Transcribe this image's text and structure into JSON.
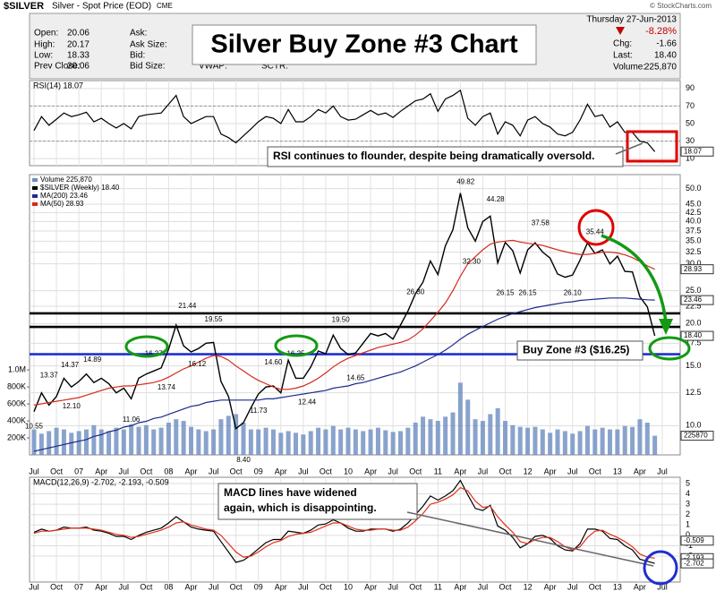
{
  "header": {
    "symbol": "$SILVER",
    "description": "Silver - Spot Price (EOD)",
    "exchange": "CME",
    "title": "Silver Buy Zone #3 Chart",
    "fields": [
      [
        "Open:",
        "20.06"
      ],
      [
        "High:",
        "20.17"
      ],
      [
        "Low:",
        "18.33"
      ],
      [
        "Prev Close:",
        "20.06"
      ]
    ],
    "fields2": [
      "Ask:",
      "Ask Size:",
      "Bid:",
      "Bid Size:"
    ],
    "vwap": "VWAP:",
    "sctr": "SCTR:",
    "date": "Thursday 27-Jun-2013",
    "change_pct": "-8.28%",
    "quote": [
      [
        "Chg:",
        "-1.66"
      ],
      [
        "Last:",
        "18.40"
      ],
      [
        "Volume:",
        "225,870"
      ]
    ],
    "credit": "© StockCharts.com"
  },
  "chart_data": [
    {
      "type": "line",
      "title": "RSI(14) 18.07",
      "grid": true,
      "series": [
        {
          "color": "#000000",
          "values": [
            42,
            58,
            48,
            55,
            62,
            58,
            60,
            63,
            52,
            56,
            50,
            45,
            50,
            44,
            58,
            60,
            61,
            62,
            72,
            82,
            58,
            50,
            54,
            58,
            58,
            38,
            34,
            28,
            36,
            44,
            52,
            58,
            56,
            50,
            66,
            52,
            52,
            58,
            66,
            62,
            70,
            58,
            54,
            55,
            60,
            65,
            60,
            62,
            57,
            64,
            70,
            76,
            78,
            84,
            64,
            78,
            82,
            88,
            56,
            48,
            58,
            62,
            38,
            52,
            48,
            36,
            54,
            58,
            50,
            46,
            38,
            36,
            40,
            54,
            72,
            58,
            60,
            46,
            52,
            40,
            40,
            30,
            28,
            18.07,
            null
          ]
        }
      ],
      "ylim": [
        2,
        99
      ],
      "yticks": [
        90,
        70,
        50,
        30,
        10
      ],
      "levels": [
        70,
        30
      ],
      "tags": [
        18.07
      ],
      "annotation": "RSI continues to flounder, despite being dramatically oversold."
    },
    {
      "type": "line",
      "log_scale": true,
      "grid": true,
      "categories": [
        "Jul",
        null,
        null,
        "Oct",
        null,
        null,
        "07",
        null,
        null,
        "Apr",
        null,
        null,
        "Jul",
        null,
        null,
        "Oct",
        null,
        null,
        "08",
        null,
        null,
        "Apr",
        null,
        null,
        "Jul",
        null,
        null,
        "Oct",
        null,
        null,
        "09",
        null,
        null,
        "Apr",
        null,
        null,
        "Jul",
        null,
        null,
        "Oct",
        null,
        null,
        "10",
        null,
        null,
        "Apr",
        null,
        null,
        "Jul",
        null,
        null,
        "Oct",
        null,
        null,
        "11",
        null,
        null,
        "Apr",
        null,
        null,
        "Jul",
        null,
        null,
        "Oct",
        null,
        null,
        "12",
        null,
        null,
        "Apr",
        null,
        null,
        "Jul",
        null,
        null,
        "Oct",
        null,
        null,
        "13",
        null,
        null,
        "Apr",
        null,
        null,
        "Jul"
      ],
      "series": [
        {
          "name": "Volume 225,870",
          "type": "bar",
          "axis": "y2",
          "color": "#6b8cc0",
          "values": [
            300000,
            250000,
            280000,
            320000,
            300000,
            260000,
            280000,
            300000,
            350000,
            300000,
            280000,
            320000,
            300000,
            360000,
            330000,
            350000,
            300000,
            320000,
            380000,
            420000,
            400000,
            330000,
            300000,
            280000,
            300000,
            420000,
            460000,
            480000,
            380000,
            300000,
            300000,
            320000,
            300000,
            260000,
            280000,
            260000,
            240000,
            280000,
            320000,
            300000,
            340000,
            300000,
            320000,
            300000,
            280000,
            300000,
            320000,
            290000,
            270000,
            280000,
            320000,
            380000,
            450000,
            420000,
            400000,
            450000,
            500000,
            850000,
            650000,
            420000,
            400000,
            480000,
            550000,
            400000,
            350000,
            330000,
            320000,
            330000,
            300000,
            260000,
            300000,
            280000,
            250000,
            280000,
            340000,
            300000,
            320000,
            300000,
            300000,
            340000,
            330000,
            420000,
            380000,
            225870,
            null
          ]
        },
        {
          "name": "$SILVER (Weekly) 18.40",
          "color": "#000000",
          "values": [
            11.0,
            12.5,
            11.5,
            12.2,
            13.8,
            13.0,
            13.5,
            14.2,
            13.4,
            13.8,
            13.3,
            12.5,
            12.9,
            12.0,
            13.8,
            14.2,
            14.5,
            14.8,
            16.8,
            19.8,
            17.2,
            16.5,
            16.9,
            17.5,
            17.6,
            13.5,
            12.2,
            9.8,
            10.2,
            11.3,
            12.4,
            13.0,
            13.1,
            12.5,
            15.6,
            13.8,
            13.8,
            14.9,
            16.6,
            16.3,
            18.5,
            16.9,
            16.2,
            16.4,
            17.5,
            18.7,
            18.4,
            18.7,
            18.0,
            19.8,
            21.8,
            24.5,
            26.5,
            30.6,
            27.9,
            33.9,
            37.8,
            48.5,
            38.3,
            35.0,
            40.0,
            41.5,
            30.2,
            34.7,
            32.8,
            28.2,
            33.0,
            34.6,
            32.5,
            31.2,
            28.0,
            27.4,
            27.8,
            30.8,
            34.6,
            32.2,
            33.0,
            30.0,
            31.6,
            28.5,
            28.4,
            24.0,
            22.4,
            18.4,
            null
          ]
        },
        {
          "name": "MA(200) 23.46",
          "color": "#1c2a8c",
          "values": [
            8.4,
            8.5,
            8.6,
            8.7,
            8.8,
            8.9,
            9.0,
            9.1,
            9.3,
            9.4,
            9.6,
            9.7,
            9.9,
            10.0,
            10.2,
            10.3,
            10.5,
            10.6,
            10.8,
            11.0,
            11.2,
            11.4,
            11.5,
            11.7,
            11.8,
            11.9,
            11.9,
            11.9,
            11.9,
            11.9,
            11.9,
            12.0,
            12.0,
            12.1,
            12.2,
            12.3,
            12.4,
            12.5,
            12.6,
            12.7,
            12.9,
            13.0,
            13.1,
            13.3,
            13.4,
            13.6,
            13.8,
            14.0,
            14.2,
            14.4,
            14.7,
            15.0,
            15.4,
            15.8,
            16.2,
            16.7,
            17.3,
            18.0,
            18.6,
            19.1,
            19.6,
            20.1,
            20.6,
            21.0,
            21.4,
            21.7,
            22.0,
            22.3,
            22.5,
            22.7,
            22.9,
            23.1,
            23.2,
            23.4,
            23.5,
            23.6,
            23.7,
            23.8,
            23.8,
            23.8,
            23.7,
            23.6,
            23.5,
            23.46,
            null
          ]
        },
        {
          "name": "MA(50) 28.93",
          "color": "#d42a1c",
          "values": [
            11.5,
            11.6,
            11.7,
            11.8,
            11.9,
            12.0,
            12.1,
            12.3,
            12.5,
            12.7,
            12.9,
            13.0,
            13.1,
            13.1,
            13.2,
            13.3,
            13.4,
            13.6,
            13.9,
            14.3,
            14.7,
            15.0,
            15.4,
            15.8,
            16.1,
            16.0,
            15.6,
            15.0,
            14.5,
            14.0,
            13.6,
            13.3,
            13.0,
            12.8,
            12.8,
            12.9,
            13.1,
            13.4,
            13.8,
            14.3,
            14.9,
            15.4,
            15.8,
            16.1,
            16.4,
            16.7,
            17.0,
            17.2,
            17.4,
            17.6,
            17.9,
            18.5,
            19.3,
            20.4,
            21.6,
            23.0,
            25.0,
            27.6,
            30.0,
            31.5,
            33.0,
            34.3,
            34.8,
            35.0,
            35.2,
            34.8,
            34.5,
            34.3,
            34.0,
            33.5,
            33.0,
            32.6,
            32.2,
            32.0,
            32.0,
            32.2,
            32.5,
            32.5,
            32.3,
            31.9,
            31.3,
            30.5,
            29.6,
            28.93,
            null
          ]
        }
      ],
      "ylim": [
        8.2,
        55
      ],
      "yticks": [
        {
          "value": 50,
          "label": "50.0"
        },
        {
          "value": 45,
          "label": "45.0"
        },
        42.5,
        {
          "value": 40,
          "label": "40.0"
        },
        37.5,
        {
          "value": 35,
          "label": "35.0"
        },
        32.5,
        {
          "value": 30,
          "label": "30.0"
        },
        {
          "value": 25,
          "label": "25.0"
        },
        22.5,
        {
          "value": 20,
          "label": "20.0"
        },
        17.5,
        {
          "value": 15,
          "label": "15.0"
        },
        12.5,
        {
          "value": 10,
          "label": "10.0"
        }
      ],
      "y2lim": [
        0,
        3300000
      ],
      "y2ticks": [
        {
          "value": 200000,
          "label": "200K"
        },
        {
          "value": 400000,
          "label": "400K"
        },
        {
          "value": 600000,
          "label": "600K"
        },
        {
          "value": 800000,
          "label": "800K"
        },
        {
          "value": 1000000,
          "label": "1.0M"
        }
      ],
      "levels": [
        {
          "value": 21.44,
          "color": "#000000"
        },
        {
          "value": 19.55,
          "color": "#000000"
        },
        {
          "value": 16.25,
          "color": "#1f2fd0"
        }
      ],
      "price_labels": [
        10.55,
        13.37,
        {
          "value": 12.1,
          "label": "12.10"
        },
        14.37,
        14.89,
        11.06,
        13.74,
        16.27,
        21.44,
        16.12,
        19.55,
        {
          "value": 8.4,
          "label": "8.40"
        },
        11.73,
        {
          "value": 14.6,
          "label": "14.60"
        },
        16.25,
        12.44,
        {
          "value": 19.5,
          "label": "19.50"
        },
        14.65,
        {
          "value": 26.3,
          "label": "26.30"
        },
        49.82,
        {
          "value": 32.3,
          "label": "32.30"
        },
        44.28,
        26.15,
        37.58,
        26.15,
        {
          "value": 26.1,
          "label": "26.10"
        },
        35.44
      ],
      "tags": [
        {
          "value": 18.4,
          "label": "18.40"
        },
        23.46,
        28.93,
        {
          "value": 225870,
          "label": "225870",
          "axis": "y2"
        }
      ],
      "annotation": "Buy Zone #3 ($16.25)"
    },
    {
      "type": "line",
      "title": "MACD(12,26,9) -2.702, -2.193, -0.509",
      "grid": true,
      "categories": [
        "Jul",
        null,
        null,
        "Oct",
        null,
        null,
        "07",
        null,
        null,
        "Apr",
        null,
        null,
        "Jul",
        null,
        null,
        "Oct",
        null,
        null,
        "08",
        null,
        null,
        "Apr",
        null,
        null,
        "Jul",
        null,
        null,
        "Oct",
        null,
        null,
        "09",
        null,
        null,
        "Apr",
        null,
        null,
        "Jul",
        null,
        null,
        "Oct",
        null,
        null,
        "10",
        null,
        null,
        "Apr",
        null,
        null,
        "Jul",
        null,
        null,
        "Oct",
        null,
        null,
        "11",
        null,
        null,
        "Apr",
        null,
        null,
        "Jul",
        null,
        null,
        "Oct",
        null,
        null,
        "12",
        null,
        null,
        "Apr",
        null,
        null,
        "Jul",
        null,
        null,
        "Oct",
        null,
        null,
        "13",
        null,
        null,
        "Apr",
        null,
        null,
        "Jul"
      ],
      "series": [
        {
          "color": "#000000",
          "values": [
            0.3,
            0.6,
            0.4,
            0.5,
            0.8,
            0.7,
            0.7,
            0.8,
            0.5,
            0.4,
            0.2,
            -0.1,
            -0.1,
            -0.4,
            0.0,
            0.3,
            0.5,
            0.7,
            1.2,
            1.8,
            1.3,
            0.8,
            0.6,
            0.5,
            0.4,
            -0.6,
            -1.6,
            -2.6,
            -2.4,
            -1.9,
            -1.3,
            -0.7,
            -0.4,
            -0.4,
            0.4,
            0.3,
            0.2,
            0.5,
            1.0,
            1.1,
            1.5,
            1.2,
            0.7,
            0.4,
            0.4,
            0.6,
            0.6,
            0.6,
            0.4,
            0.6,
            1.2,
            2.0,
            2.8,
            3.8,
            3.4,
            3.8,
            4.3,
            5.3,
            3.9,
            2.6,
            2.4,
            2.9,
            0.9,
            0.5,
            -0.2,
            -1.2,
            -0.8,
            -0.1,
            0.0,
            -0.3,
            -1.0,
            -1.4,
            -1.5,
            -0.8,
            0.6,
            0.6,
            0.4,
            -0.3,
            -0.4,
            -1.0,
            -1.4,
            -2.3,
            -2.5,
            -2.702,
            null
          ]
        },
        {
          "color": "#e0301e",
          "values": [
            0.2,
            0.4,
            0.4,
            0.5,
            0.6,
            0.7,
            0.7,
            0.7,
            0.6,
            0.5,
            0.3,
            0.1,
            0.0,
            -0.2,
            -0.1,
            0.1,
            0.3,
            0.5,
            0.8,
            1.2,
            1.3,
            1.0,
            0.8,
            0.6,
            0.5,
            0.0,
            -0.8,
            -1.6,
            -2.1,
            -2.0,
            -1.6,
            -1.1,
            -0.7,
            -0.5,
            -0.1,
            0.1,
            0.2,
            0.3,
            0.6,
            0.9,
            1.2,
            1.2,
            0.9,
            0.6,
            0.5,
            0.5,
            0.6,
            0.6,
            0.5,
            0.5,
            0.8,
            1.4,
            2.1,
            3.0,
            3.2,
            3.5,
            3.9,
            4.6,
            4.3,
            3.3,
            2.7,
            2.8,
            1.8,
            1.0,
            0.3,
            -0.6,
            -0.8,
            -0.4,
            -0.2,
            -0.2,
            -0.6,
            -1.1,
            -1.4,
            -1.1,
            -0.2,
            0.4,
            0.5,
            0.1,
            -0.2,
            -0.6,
            -1.1,
            -1.8,
            -2.1,
            -2.193,
            null
          ]
        }
      ],
      "ylim": [
        -4.5,
        5.6
      ],
      "yticks": [
        5,
        4,
        3,
        2,
        1,
        0,
        -1,
        -2
      ],
      "tags": [
        -0.509,
        -2.193,
        -2.702
      ],
      "annotation": "MACD lines have widened again, which is disappointing."
    }
  ]
}
